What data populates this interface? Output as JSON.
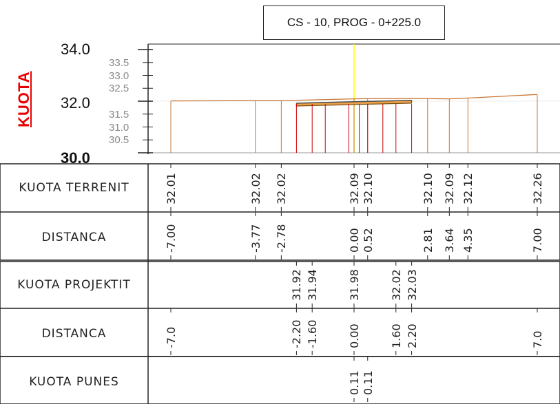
{
  "title": "CS - 10, PROG - 0+225.0",
  "axis_label": "KUOTA",
  "y_major": [
    {
      "text": "34.0",
      "value": 34.0
    },
    {
      "text": "32.0",
      "value": 32.0
    },
    {
      "text": "30.0",
      "value": 30.0
    }
  ],
  "y_minor": [
    "33.5",
    "33.0",
    "32.5",
    "31.5",
    "31.0",
    "30.5"
  ],
  "colors": {
    "terrain": "#c87533",
    "project": "#cc0000",
    "axis": "#ffff00",
    "label": "#e60000"
  },
  "rows": [
    {
      "label": "KUOTA TERRENIT",
      "values": [
        {
          "d": -7.0,
          "t": "32.01"
        },
        {
          "d": -3.77,
          "t": "32.02"
        },
        {
          "d": -2.78,
          "t": "32.02"
        },
        {
          "d": 0.0,
          "t": "32.09"
        },
        {
          "d": 0.52,
          "t": "32.10"
        },
        {
          "d": 2.81,
          "t": "32.10"
        },
        {
          "d": 3.64,
          "t": "32.09"
        },
        {
          "d": 4.35,
          "t": "32.12"
        },
        {
          "d": 7.0,
          "t": "32.26"
        }
      ]
    },
    {
      "label": "DISTANCA",
      "values": [
        {
          "d": -7.0,
          "t": "-7.00"
        },
        {
          "d": -3.77,
          "t": "-3.77"
        },
        {
          "d": -2.78,
          "t": "-2.78"
        },
        {
          "d": 0.0,
          "t": "0.00"
        },
        {
          "d": 0.52,
          "t": "0.52"
        },
        {
          "d": 2.81,
          "t": "2.81"
        },
        {
          "d": 3.64,
          "t": "3.64"
        },
        {
          "d": 4.35,
          "t": "4.35"
        },
        {
          "d": 7.0,
          "t": "7.00"
        }
      ]
    },
    {
      "label": "KUOTA PROJEKTIT",
      "values": [
        {
          "d": -2.2,
          "t": "31.92"
        },
        {
          "d": -1.6,
          "t": "31.94"
        },
        {
          "d": 0.0,
          "t": "31.98"
        },
        {
          "d": 1.6,
          "t": "32.02"
        },
        {
          "d": 2.2,
          "t": "32.03"
        }
      ]
    },
    {
      "label": "DISTANCA",
      "values": [
        {
          "d": -7.0,
          "t": "-7.0"
        },
        {
          "d": -2.2,
          "t": "-2.20"
        },
        {
          "d": -1.6,
          "t": "-1.60"
        },
        {
          "d": 0.0,
          "t": "0.00"
        },
        {
          "d": 1.6,
          "t": "1.60"
        },
        {
          "d": 2.2,
          "t": "2.20"
        },
        {
          "d": 7.0,
          "t": "7.0"
        }
      ]
    },
    {
      "label": "KUOTA PUNES",
      "values": [
        {
          "d": 0.0,
          "t": "0.11"
        },
        {
          "d": 0.52,
          "t": "0.11"
        }
      ]
    }
  ]
}
